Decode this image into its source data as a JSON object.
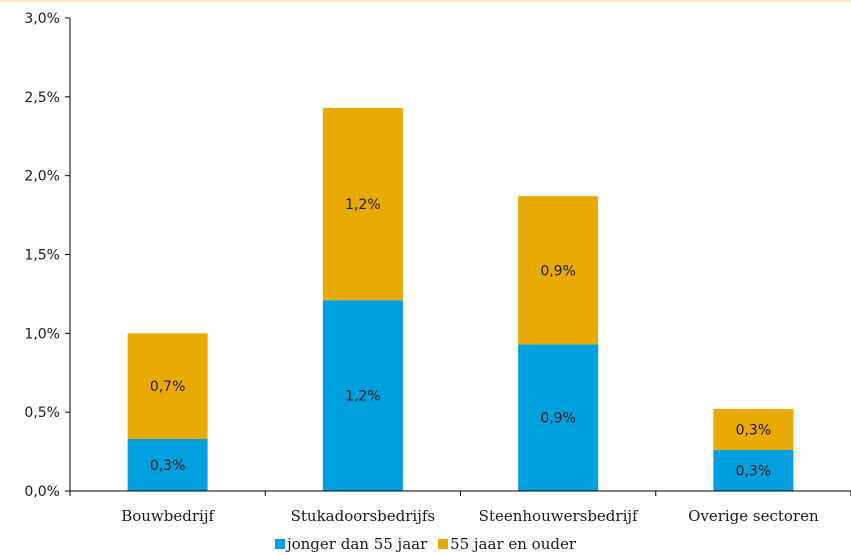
{
  "chart_data": {
    "type": "bar",
    "stacked": true,
    "categories": [
      "Bouwbedrijf",
      "Stukadoorsbedrijfs",
      "Steenhouwersbedrijf",
      "Overige sectoren"
    ],
    "series": [
      {
        "name": "jonger dan 55 jaar",
        "color": "#00a0df",
        "values": [
          0.33,
          1.21,
          0.93,
          0.26
        ],
        "labels": [
          "0,3%",
          "1,2%",
          "0,9%",
          "0,3%"
        ]
      },
      {
        "name": "55 jaar en ouder",
        "color": "#e8a900",
        "values": [
          0.67,
          1.22,
          0.94,
          0.26
        ],
        "labels": [
          "0,7%",
          "1,2%",
          "0,9%",
          "0,3%"
        ]
      }
    ],
    "ylim": [
      0,
      3.0
    ],
    "yticks": [
      0,
      0.5,
      1.0,
      1.5,
      2.0,
      2.5,
      3.0
    ],
    "ytick_labels": [
      "0,0%",
      "0,5%",
      "1,0%",
      "1,5%",
      "2,0%",
      "2,5%",
      "3,0%"
    ],
    "legend_position": "bottom",
    "grid": false
  }
}
